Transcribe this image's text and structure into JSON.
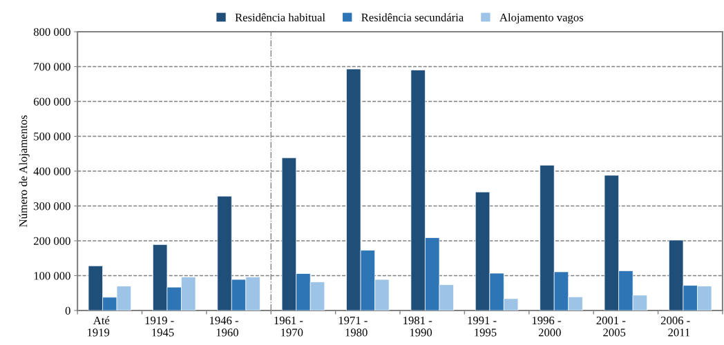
{
  "chart_data": {
    "type": "bar",
    "ylabel": "Número de Alojamentos",
    "categories": [
      "Até\n1919",
      "1919 -\n1945",
      "1946 -\n1960",
      "1961 -\n1970",
      "1971 -\n1980",
      "1981 -\n1990",
      "1991 -\n1995",
      "1996 -\n2000",
      "2001 -\n2005",
      "2006 -\n2011"
    ],
    "series": [
      {
        "name": "Residência habitual",
        "color": "#1f4e79",
        "values": [
          128000,
          189000,
          328000,
          438000,
          693000,
          690000,
          340000,
          417000,
          388000,
          202000
        ]
      },
      {
        "name": "Residência secundária",
        "color": "#2e75b6",
        "values": [
          38000,
          67000,
          89000,
          106000,
          173000,
          209000,
          107000,
          111000,
          114000,
          72000
        ]
      },
      {
        "name": "Alojamento vagos",
        "color": "#9dc3e6",
        "values": [
          70000,
          96000,
          96000,
          82000,
          89000,
          74000,
          34000,
          39000,
          44000,
          70000
        ]
      }
    ],
    "ylim": [
      0,
      800000
    ],
    "yticks": [
      0,
      {
        "value": 100000,
        "label": "100 000"
      },
      {
        "value": 200000,
        "label": "200 000"
      },
      {
        "value": 300000,
        "label": "300 000"
      },
      {
        "value": 400000,
        "label": "400 000"
      },
      {
        "value": 500000,
        "label": "500 000"
      },
      {
        "value": 600000,
        "label": "600 000"
      },
      {
        "value": 700000,
        "label": "700 000"
      },
      {
        "value": 800000,
        "label": "800 000"
      }
    ],
    "grid": "y",
    "legend": "top"
  }
}
